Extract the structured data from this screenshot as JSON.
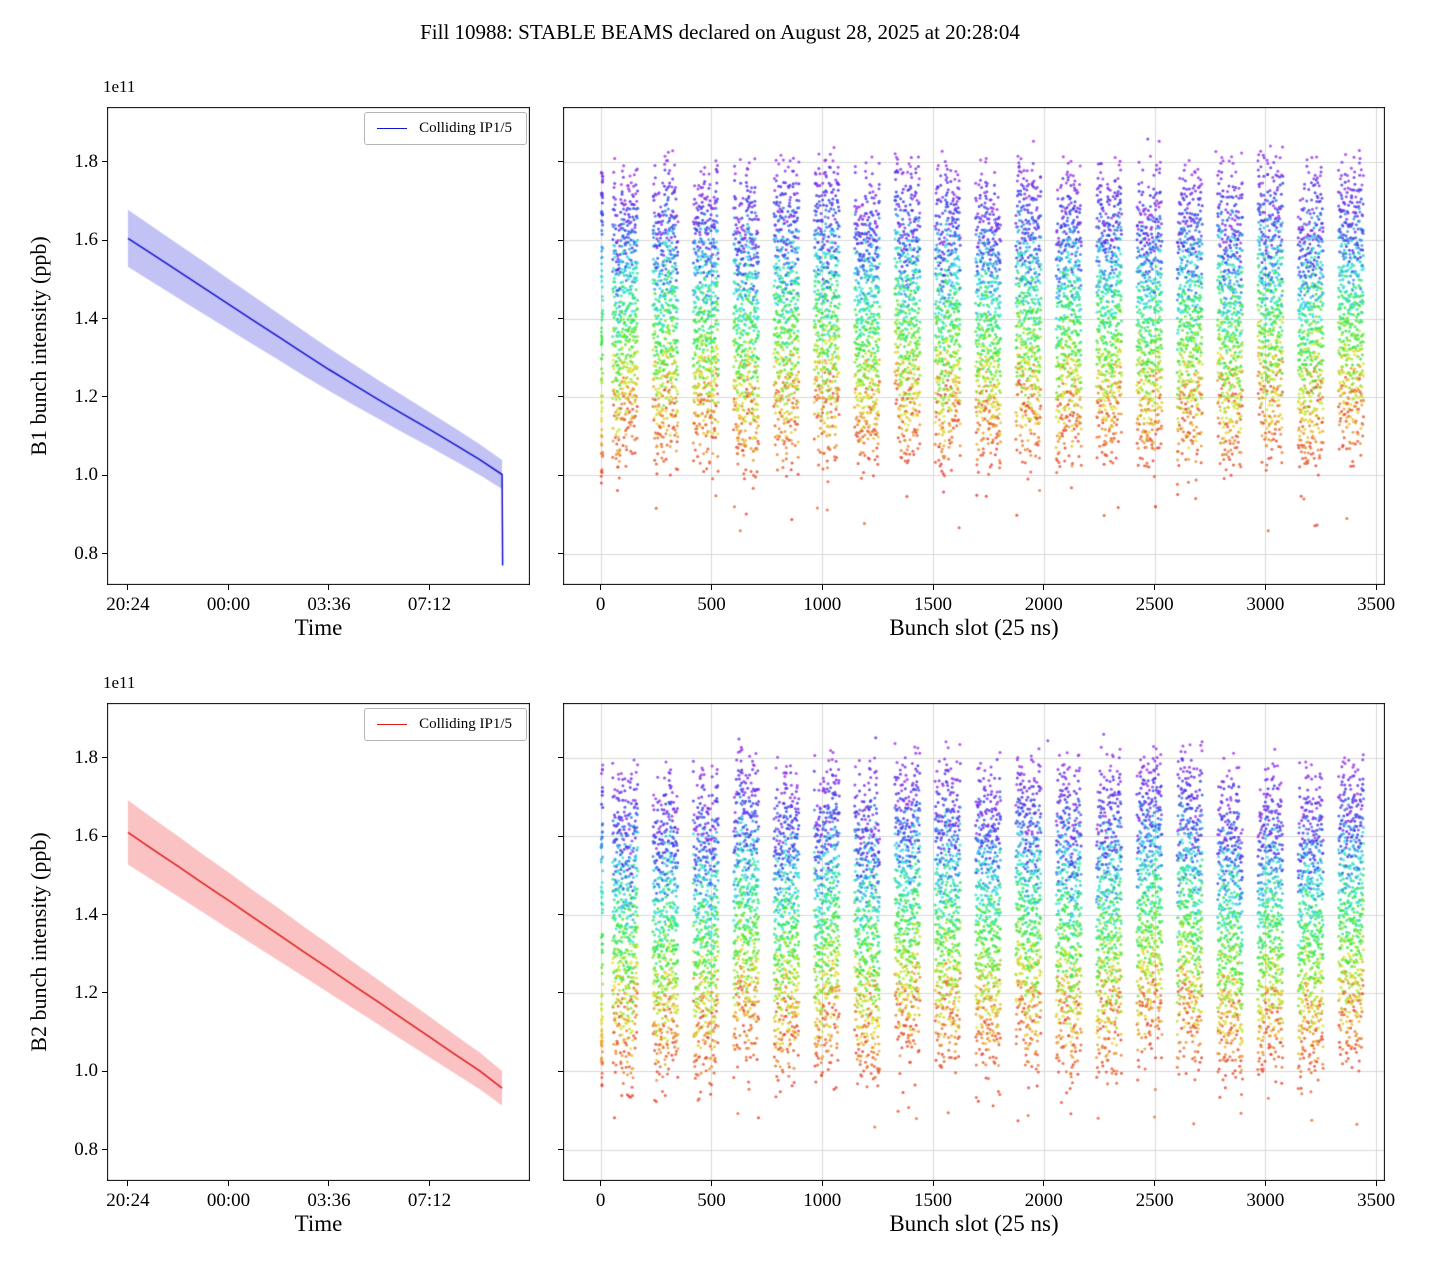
{
  "figure": {
    "title": "Fill 10988: STABLE BEAMS declared on August 28, 2025 at 20:28:04",
    "background": "#ffffff"
  },
  "chart_data": [
    {
      "id": "b1_intensity_vs_time",
      "type": "line",
      "xlabel": "Time",
      "ylabel": "B1 bunch intensity (ppb)",
      "y_offset_text": "1e11",
      "legend_label": "Colliding IP1/5",
      "legend_position": "upper right",
      "line_color": "#1414cc",
      "band_color": "rgba(70,70,225,0.33)",
      "xlim": [
        -0.75,
        14.4
      ],
      "ylim": [
        0.72,
        1.94
      ],
      "grid": false,
      "show_y_tick_labels": true,
      "x_ticks": [
        {
          "value": 0.0,
          "label": "20:24"
        },
        {
          "value": 3.6,
          "label": "00:00"
        },
        {
          "value": 7.2,
          "label": "03:36"
        },
        {
          "value": 10.8,
          "label": "07:12"
        }
      ],
      "y_ticks": [
        {
          "value": 0.8,
          "label": "0.8"
        },
        {
          "value": 1.0,
          "label": "1.0"
        },
        {
          "value": 1.2,
          "label": "1.2"
        },
        {
          "value": 1.4,
          "label": "1.4"
        },
        {
          "value": 1.6,
          "label": "1.6"
        },
        {
          "value": 1.8,
          "label": "1.8"
        }
      ],
      "x_hours": [
        0,
        0.9,
        1.8,
        2.7,
        3.6,
        4.5,
        5.4,
        6.3,
        7.2,
        8.1,
        9.0,
        9.9,
        10.8,
        11.7,
        12.6,
        13.4
      ],
      "mean": [
        1.605,
        1.563,
        1.521,
        1.479,
        1.437,
        1.395,
        1.353,
        1.311,
        1.27,
        1.231,
        1.192,
        1.154,
        1.117,
        1.079,
        1.04,
        1.002
      ],
      "upper": [
        1.678,
        1.634,
        1.59,
        1.546,
        1.501,
        1.457,
        1.412,
        1.368,
        1.324,
        1.283,
        1.241,
        1.201,
        1.161,
        1.121,
        1.079,
        1.039
      ],
      "lower": [
        1.532,
        1.492,
        1.452,
        1.412,
        1.373,
        1.333,
        1.294,
        1.254,
        1.216,
        1.179,
        1.143,
        1.107,
        1.073,
        1.037,
        1.001,
        0.965
      ],
      "end_drop": {
        "x": 13.42,
        "value": 0.77
      }
    },
    {
      "id": "b1_intensity_vs_bunch_slot",
      "type": "scatter",
      "xlabel": "Bunch slot (25 ns)",
      "ylabel": "",
      "xlim": [
        -170,
        3540
      ],
      "ylim": [
        0.72,
        1.94
      ],
      "grid": true,
      "grid_color": "#d8d8d8",
      "show_y_tick_labels": false,
      "x_ticks": [
        {
          "value": 0,
          "label": "0"
        },
        {
          "value": 500,
          "label": "500"
        },
        {
          "value": 1000,
          "label": "1000"
        },
        {
          "value": 1500,
          "label": "1500"
        },
        {
          "value": 2000,
          "label": "2000"
        },
        {
          "value": 2500,
          "label": "2500"
        },
        {
          "value": 3000,
          "label": "3000"
        },
        {
          "value": 3500,
          "label": "3500"
        }
      ],
      "y_ticks": [
        {
          "value": 0.8,
          "label": "0.8"
        },
        {
          "value": 1.0,
          "label": "1.0"
        },
        {
          "value": 1.2,
          "label": "1.2"
        },
        {
          "value": 1.4,
          "label": "1.4"
        },
        {
          "value": 1.6,
          "label": "1.6"
        },
        {
          "value": 1.8,
          "label": "1.8"
        }
      ],
      "color_encoding": "rainbow colormap over fill time: violet = start of fill (high intensity ~1.6-1.8e11), red = end of fill (~1.0e11)",
      "generation": {
        "seed": 20250828,
        "trains": {
          "count": 19,
          "first_start": 55,
          "spacing": 182,
          "length": 112,
          "slot_step": 3
        },
        "intensity_start_range": [
          1.6,
          1.83
        ],
        "intensity_drop": 0.625,
        "drop_jitter": 0.05,
        "noise_sigma": 0.018,
        "time_samples": 14,
        "injection_column": {
          "x_center": 6,
          "n_points": 85,
          "top": 1.8,
          "span": 0.82
        },
        "n_high_outliers": 7,
        "n_low_outliers": 28
      }
    },
    {
      "id": "b2_intensity_vs_time",
      "type": "line",
      "xlabel": "Time",
      "ylabel": "B2 bunch intensity (ppb)",
      "y_offset_text": "1e11",
      "legend_label": "Colliding IP1/5",
      "legend_position": "upper right",
      "line_color": "#dd1c1c",
      "band_color": "rgba(240,80,80,0.35)",
      "xlim": [
        -0.75,
        14.4
      ],
      "ylim": [
        0.72,
        1.94
      ],
      "grid": false,
      "show_y_tick_labels": true,
      "x_ticks": [
        {
          "value": 0.0,
          "label": "20:24"
        },
        {
          "value": 3.6,
          "label": "00:00"
        },
        {
          "value": 7.2,
          "label": "03:36"
        },
        {
          "value": 10.8,
          "label": "07:12"
        }
      ],
      "y_ticks": [
        {
          "value": 0.8,
          "label": "0.8"
        },
        {
          "value": 1.0,
          "label": "1.0"
        },
        {
          "value": 1.2,
          "label": "1.2"
        },
        {
          "value": 1.4,
          "label": "1.4"
        },
        {
          "value": 1.6,
          "label": "1.6"
        },
        {
          "value": 1.8,
          "label": "1.8"
        }
      ],
      "x_hours": [
        0,
        0.9,
        1.8,
        2.7,
        3.6,
        4.5,
        5.4,
        6.3,
        7.2,
        8.1,
        9.0,
        9.9,
        10.8,
        11.7,
        12.6,
        13.4
      ],
      "mean": [
        1.61,
        1.566,
        1.523,
        1.479,
        1.436,
        1.392,
        1.349,
        1.305,
        1.262,
        1.218,
        1.175,
        1.131,
        1.088,
        1.044,
        1.001,
        0.957
      ],
      "upper": [
        1.692,
        1.645,
        1.6,
        1.553,
        1.508,
        1.461,
        1.416,
        1.369,
        1.324,
        1.277,
        1.232,
        1.185,
        1.14,
        1.093,
        1.048,
        1.001
      ],
      "lower": [
        1.528,
        1.487,
        1.446,
        1.405,
        1.364,
        1.323,
        1.282,
        1.241,
        1.2,
        1.159,
        1.118,
        1.077,
        1.036,
        0.995,
        0.954,
        0.913
      ]
    },
    {
      "id": "b2_intensity_vs_bunch_slot",
      "type": "scatter",
      "xlabel": "Bunch slot (25 ns)",
      "ylabel": "",
      "xlim": [
        -170,
        3540
      ],
      "ylim": [
        0.72,
        1.94
      ],
      "grid": true,
      "grid_color": "#d8d8d8",
      "show_y_tick_labels": false,
      "x_ticks": [
        {
          "value": 0,
          "label": "0"
        },
        {
          "value": 500,
          "label": "500"
        },
        {
          "value": 1000,
          "label": "1000"
        },
        {
          "value": 1500,
          "label": "1500"
        },
        {
          "value": 2000,
          "label": "2000"
        },
        {
          "value": 2500,
          "label": "2500"
        },
        {
          "value": 3000,
          "label": "3000"
        },
        {
          "value": 3500,
          "label": "3500"
        }
      ],
      "y_ticks": [
        {
          "value": 0.8,
          "label": "0.8"
        },
        {
          "value": 1.0,
          "label": "1.0"
        },
        {
          "value": 1.2,
          "label": "1.2"
        },
        {
          "value": 1.4,
          "label": "1.4"
        },
        {
          "value": 1.6,
          "label": "1.6"
        },
        {
          "value": 1.8,
          "label": "1.8"
        }
      ],
      "color_encoding": "rainbow colormap over fill time: violet = start of fill (high intensity ~1.6-1.8e11), red = end of fill (~0.95-1.0e11)",
      "generation": {
        "seed": 777123,
        "trains": {
          "count": 19,
          "first_start": 55,
          "spacing": 182,
          "length": 112,
          "slot_step": 3
        },
        "intensity_start_range": [
          1.6,
          1.83
        ],
        "intensity_drop": 0.655,
        "drop_jitter": 0.05,
        "noise_sigma": 0.018,
        "time_samples": 14,
        "injection_column": {
          "x_center": 6,
          "n_points": 85,
          "top": 1.8,
          "span": 0.85
        },
        "n_high_outliers": 6,
        "n_low_outliers": 40
      }
    }
  ]
}
